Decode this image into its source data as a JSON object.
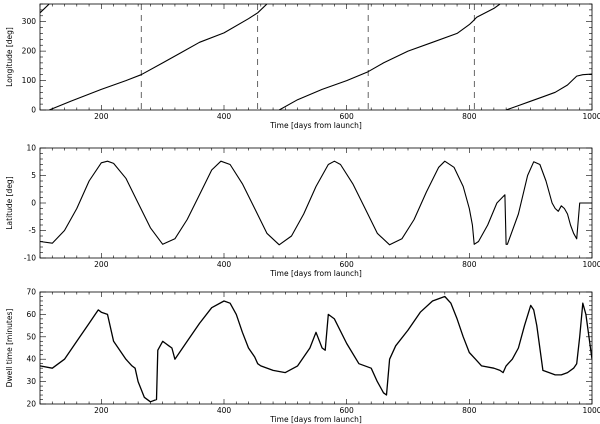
{
  "chart_data": [
    {
      "type": "line",
      "xlabel": "Time [days from launch]",
      "ylabel": "Longitude [deg]",
      "xlim": [
        100,
        1000
      ],
      "ylim": [
        0,
        360
      ],
      "xticks": [
        200,
        400,
        600,
        800,
        1000
      ],
      "yticks": [
        0,
        100,
        200,
        300
      ],
      "vertical_reference_lines": [
        265,
        455,
        635,
        808
      ],
      "series": [
        {
          "x": [
            100,
            115
          ],
          "y": [
            330,
            360
          ]
        },
        {
          "x": [
            115,
            150,
            200,
            240,
            265,
            300,
            330,
            360,
            400,
            440,
            455,
            470
          ],
          "y": [
            0,
            30,
            70,
            100,
            120,
            160,
            195,
            230,
            262,
            310,
            330,
            360
          ]
        },
        {
          "x": [
            490,
            520,
            560,
            600,
            635,
            660,
            700,
            740,
            780,
            800,
            805,
            812,
            840,
            850
          ],
          "y": [
            0,
            35,
            70,
            100,
            130,
            160,
            200,
            230,
            260,
            290,
            300,
            315,
            345,
            360
          ]
        },
        {
          "x": [
            860,
            880,
            900,
            920,
            940,
            960,
            975,
            985,
            1000
          ],
          "y": [
            0,
            15,
            30,
            45,
            60,
            85,
            115,
            120,
            122
          ]
        }
      ]
    },
    {
      "type": "line",
      "xlabel": "Time [days from launch]",
      "ylabel": "Latitude [deg]",
      "xlim": [
        100,
        1000
      ],
      "ylim": [
        -10,
        10
      ],
      "xticks": [
        200,
        400,
        600,
        800,
        1000
      ],
      "yticks": [
        -10,
        -5,
        0,
        5,
        10
      ],
      "series": [
        {
          "x": [
            100,
            120,
            140,
            160,
            180,
            200,
            210,
            220,
            240,
            260,
            280,
            300,
            320,
            340,
            360,
            380,
            395,
            410,
            430,
            450,
            470,
            490,
            510,
            530,
            550,
            570,
            580,
            590,
            610,
            630,
            650,
            670,
            690,
            710,
            730,
            750,
            760,
            775,
            790,
            800,
            805,
            808,
            815,
            830,
            845,
            858,
            860,
            862,
            880,
            895,
            905,
            915,
            925,
            935,
            940,
            945,
            950,
            955,
            960,
            965,
            970,
            975,
            980,
            985,
            990,
            1000
          ],
          "y": [
            -7,
            -7.3,
            -5,
            -1,
            4,
            7.3,
            7.6,
            7.2,
            4.5,
            0,
            -4.5,
            -7.5,
            -6.5,
            -3,
            1.5,
            6,
            7.6,
            7,
            3.5,
            -1,
            -5.5,
            -7.6,
            -6,
            -2,
            3,
            7,
            7.6,
            7,
            3.5,
            -1,
            -5.5,
            -7.6,
            -6.5,
            -3,
            2,
            6.5,
            7.6,
            6.5,
            3,
            -1,
            -4,
            -7.5,
            -7,
            -4,
            0,
            1.5,
            -7.5,
            -7.5,
            -2,
            5,
            7.5,
            7,
            4,
            0,
            -1,
            -1.5,
            -0.5,
            -1,
            -2,
            -4,
            -5.5,
            -6.5,
            0,
            0,
            0,
            0
          ]
        }
      ]
    },
    {
      "type": "line",
      "xlabel": "Time [days from launch]",
      "ylabel": "Dwell time [minutes]",
      "xlim": [
        100,
        1000
      ],
      "ylim": [
        20,
        70
      ],
      "xticks": [
        200,
        400,
        600,
        800,
        1000
      ],
      "yticks": [
        20,
        30,
        40,
        50,
        60,
        70
      ],
      "series": [
        {
          "x": [
            100,
            120,
            140,
            160,
            180,
            190,
            195,
            200,
            210,
            220,
            240,
            250,
            255,
            260,
            270,
            280,
            290,
            292,
            300,
            305,
            310,
            315,
            320,
            340,
            360,
            380,
            400,
            410,
            420,
            430,
            440,
            450,
            455,
            460,
            480,
            500,
            520,
            540,
            550,
            560,
            565,
            570,
            580,
            600,
            620,
            640,
            650,
            660,
            665,
            670,
            680,
            700,
            720,
            740,
            760,
            770,
            780,
            790,
            800,
            810,
            820,
            840,
            850,
            855,
            860,
            870,
            880,
            890,
            900,
            905,
            910,
            920,
            930,
            940,
            950,
            960,
            970,
            975,
            980,
            985,
            990,
            1000
          ],
          "y": [
            37,
            36,
            40,
            48,
            56,
            60,
            62,
            61,
            60,
            48,
            40,
            37,
            36,
            30,
            23,
            21,
            22,
            44,
            48,
            47,
            46,
            45,
            40,
            48,
            56,
            63,
            66,
            65,
            60,
            52,
            45,
            41,
            38,
            37,
            35,
            34,
            37,
            45,
            52,
            45,
            44,
            60,
            58,
            47,
            38,
            36,
            30,
            25,
            24,
            40,
            46,
            53,
            61,
            66,
            68,
            65,
            58,
            50,
            43,
            40,
            37,
            36,
            35,
            34,
            37,
            40,
            45,
            55,
            64,
            62,
            55,
            35,
            34,
            33,
            33,
            34,
            36,
            38,
            50,
            65,
            60,
            40
          ]
        }
      ]
    }
  ]
}
